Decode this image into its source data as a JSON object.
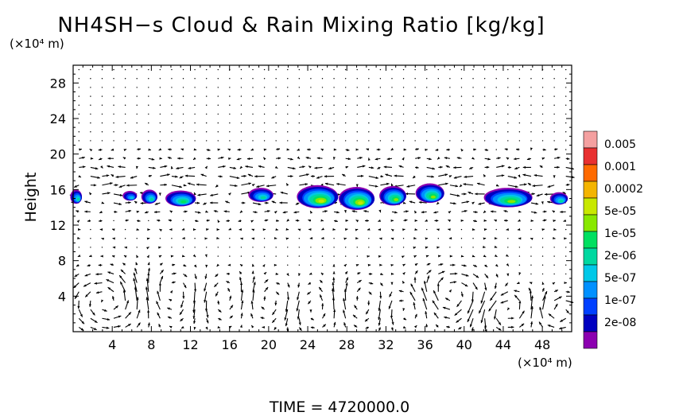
{
  "chart_data": {
    "type": "heatmap",
    "title": "NH4SH−s Cloud & Rain Mixing Ratio [kg/kg]",
    "y_unit": "(×10⁴ m)",
    "x_unit": "(×10⁴ m)",
    "ylabel": "Height",
    "xlabel": "",
    "time_label": "TIME  =  4720000.0",
    "xlim": [
      0,
      51
    ],
    "ylim": [
      0,
      30
    ],
    "x_ticks": [
      4,
      8,
      12,
      16,
      20,
      24,
      28,
      32,
      36,
      40,
      44,
      48
    ],
    "y_ticks": [
      4,
      8,
      12,
      16,
      20,
      24,
      28
    ],
    "grid": false,
    "legend_position": "right",
    "colorbar": {
      "labels": [
        "0.005",
        "0.001",
        "0.0002",
        "5e-05",
        "1e-05",
        "2e-06",
        "5e-07",
        "1e-07",
        "2e-08"
      ],
      "colors": [
        "#f4a0a0",
        "#e83030",
        "#ff6a00",
        "#f4b400",
        "#c8e800",
        "#88e800",
        "#00e060",
        "#00d8a0",
        "#00c8e8",
        "#0090ff",
        "#0040ff",
        "#0000c0",
        "#8c00b0"
      ]
    },
    "clouds": [
      {
        "x": 0.3,
        "y": 15.2,
        "w": 1.3,
        "h": 1.6,
        "level": 5
      },
      {
        "x": 5.8,
        "y": 15.3,
        "w": 1.6,
        "h": 1.1,
        "level": 4
      },
      {
        "x": 7.8,
        "y": 15.2,
        "w": 1.8,
        "h": 1.6,
        "level": 5
      },
      {
        "x": 11.0,
        "y": 15.0,
        "w": 3.4,
        "h": 1.8,
        "level": 6
      },
      {
        "x": 19.2,
        "y": 15.4,
        "w": 2.8,
        "h": 1.6,
        "level": 5
      },
      {
        "x": 25.0,
        "y": 15.2,
        "w": 4.6,
        "h": 2.6,
        "level": 8
      },
      {
        "x": 29.0,
        "y": 15.0,
        "w": 4.0,
        "h": 2.6,
        "level": 8
      },
      {
        "x": 32.7,
        "y": 15.3,
        "w": 3.0,
        "h": 2.2,
        "level": 7
      },
      {
        "x": 36.5,
        "y": 15.6,
        "w": 3.2,
        "h": 2.2,
        "level": 7
      },
      {
        "x": 44.5,
        "y": 15.1,
        "w": 5.4,
        "h": 2.2,
        "level": 7
      },
      {
        "x": 49.7,
        "y": 15.0,
        "w": 2.0,
        "h": 1.4,
        "level": 5
      }
    ],
    "vortices": [
      {
        "x": 3.8,
        "y": 3.4,
        "r": 3.4,
        "dir": 1
      },
      {
        "x": 10.8,
        "y": 4.0,
        "r": 3.2,
        "dir": -1
      },
      {
        "x": 14.8,
        "y": 3.8,
        "r": 3.0,
        "dir": 1
      },
      {
        "x": 20.5,
        "y": 3.4,
        "r": 2.8,
        "dir": -1
      },
      {
        "x": 24.6,
        "y": 3.0,
        "r": 3.0,
        "dir": 1
      },
      {
        "x": 29.6,
        "y": 3.2,
        "r": 3.0,
        "dir": -1
      },
      {
        "x": 33.8,
        "y": 3.0,
        "r": 2.6,
        "dir": 1
      },
      {
        "x": 38.6,
        "y": 4.0,
        "r": 3.2,
        "dir": -1
      },
      {
        "x": 44.2,
        "y": 2.6,
        "r": 2.4,
        "dir": 1
      },
      {
        "x": 49.6,
        "y": 2.2,
        "r": 2.0,
        "dir": -1
      }
    ]
  }
}
